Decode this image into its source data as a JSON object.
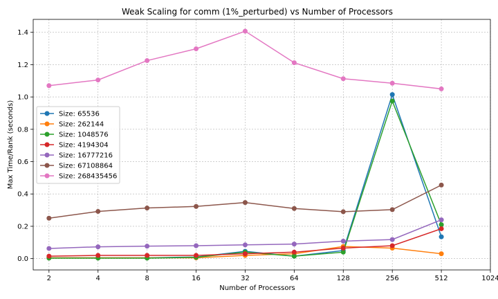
{
  "chart_data": {
    "type": "line",
    "title": "Weak Scaling for comm (1%_perturbed) vs Number of Processors",
    "xlabel": "Number of Processors",
    "ylabel": "Max Time/Rank (seconds)",
    "x_scale": "log2",
    "x_ticks": [
      "2",
      "4",
      "8",
      "16",
      "32",
      "64",
      "128",
      "256",
      "512",
      "1024"
    ],
    "x": [
      2,
      4,
      8,
      16,
      32,
      64,
      128,
      256,
      512
    ],
    "xlim": [
      1.6,
      1024
    ],
    "ylim": [
      -0.07,
      1.48
    ],
    "y_ticks": [
      "0.0",
      "0.2",
      "0.4",
      "0.6",
      "0.8",
      "1.0",
      "1.2",
      "1.4"
    ],
    "grid": true,
    "legend_position": "center-left",
    "series": [
      {
        "name": "Size: 65536",
        "color": "#1f77b4",
        "values": [
          0.005,
          0.005,
          0.005,
          0.01,
          0.045,
          0.015,
          0.05,
          1.015,
          0.135
        ]
      },
      {
        "name": "Size: 262144",
        "color": "#ff7f0e",
        "values": [
          0.005,
          0.005,
          0.005,
          0.005,
          0.02,
          0.03,
          0.075,
          0.065,
          0.03
        ]
      },
      {
        "name": "Size: 1048576",
        "color": "#2ca02c",
        "values": [
          0.003,
          0.003,
          0.003,
          0.008,
          0.04,
          0.015,
          0.04,
          0.975,
          0.21
        ]
      },
      {
        "name": "Size: 4194304",
        "color": "#d62728",
        "values": [
          0.015,
          0.02,
          0.02,
          0.02,
          0.03,
          0.04,
          0.065,
          0.08,
          0.185
        ]
      },
      {
        "name": "Size: 16777216",
        "color": "#9467bd",
        "values": [
          0.063,
          0.073,
          0.077,
          0.08,
          0.085,
          0.09,
          0.108,
          0.118,
          0.24
        ]
      },
      {
        "name": "Size: 67108864",
        "color": "#8c564b",
        "values": [
          0.25,
          0.292,
          0.313,
          0.323,
          0.347,
          0.31,
          0.29,
          0.303,
          0.455
        ]
      },
      {
        "name": "Size: 268435456",
        "color": "#e377c2",
        "values": [
          1.07,
          1.105,
          1.225,
          1.298,
          1.407,
          1.212,
          1.113,
          1.085,
          1.05
        ]
      }
    ]
  }
}
